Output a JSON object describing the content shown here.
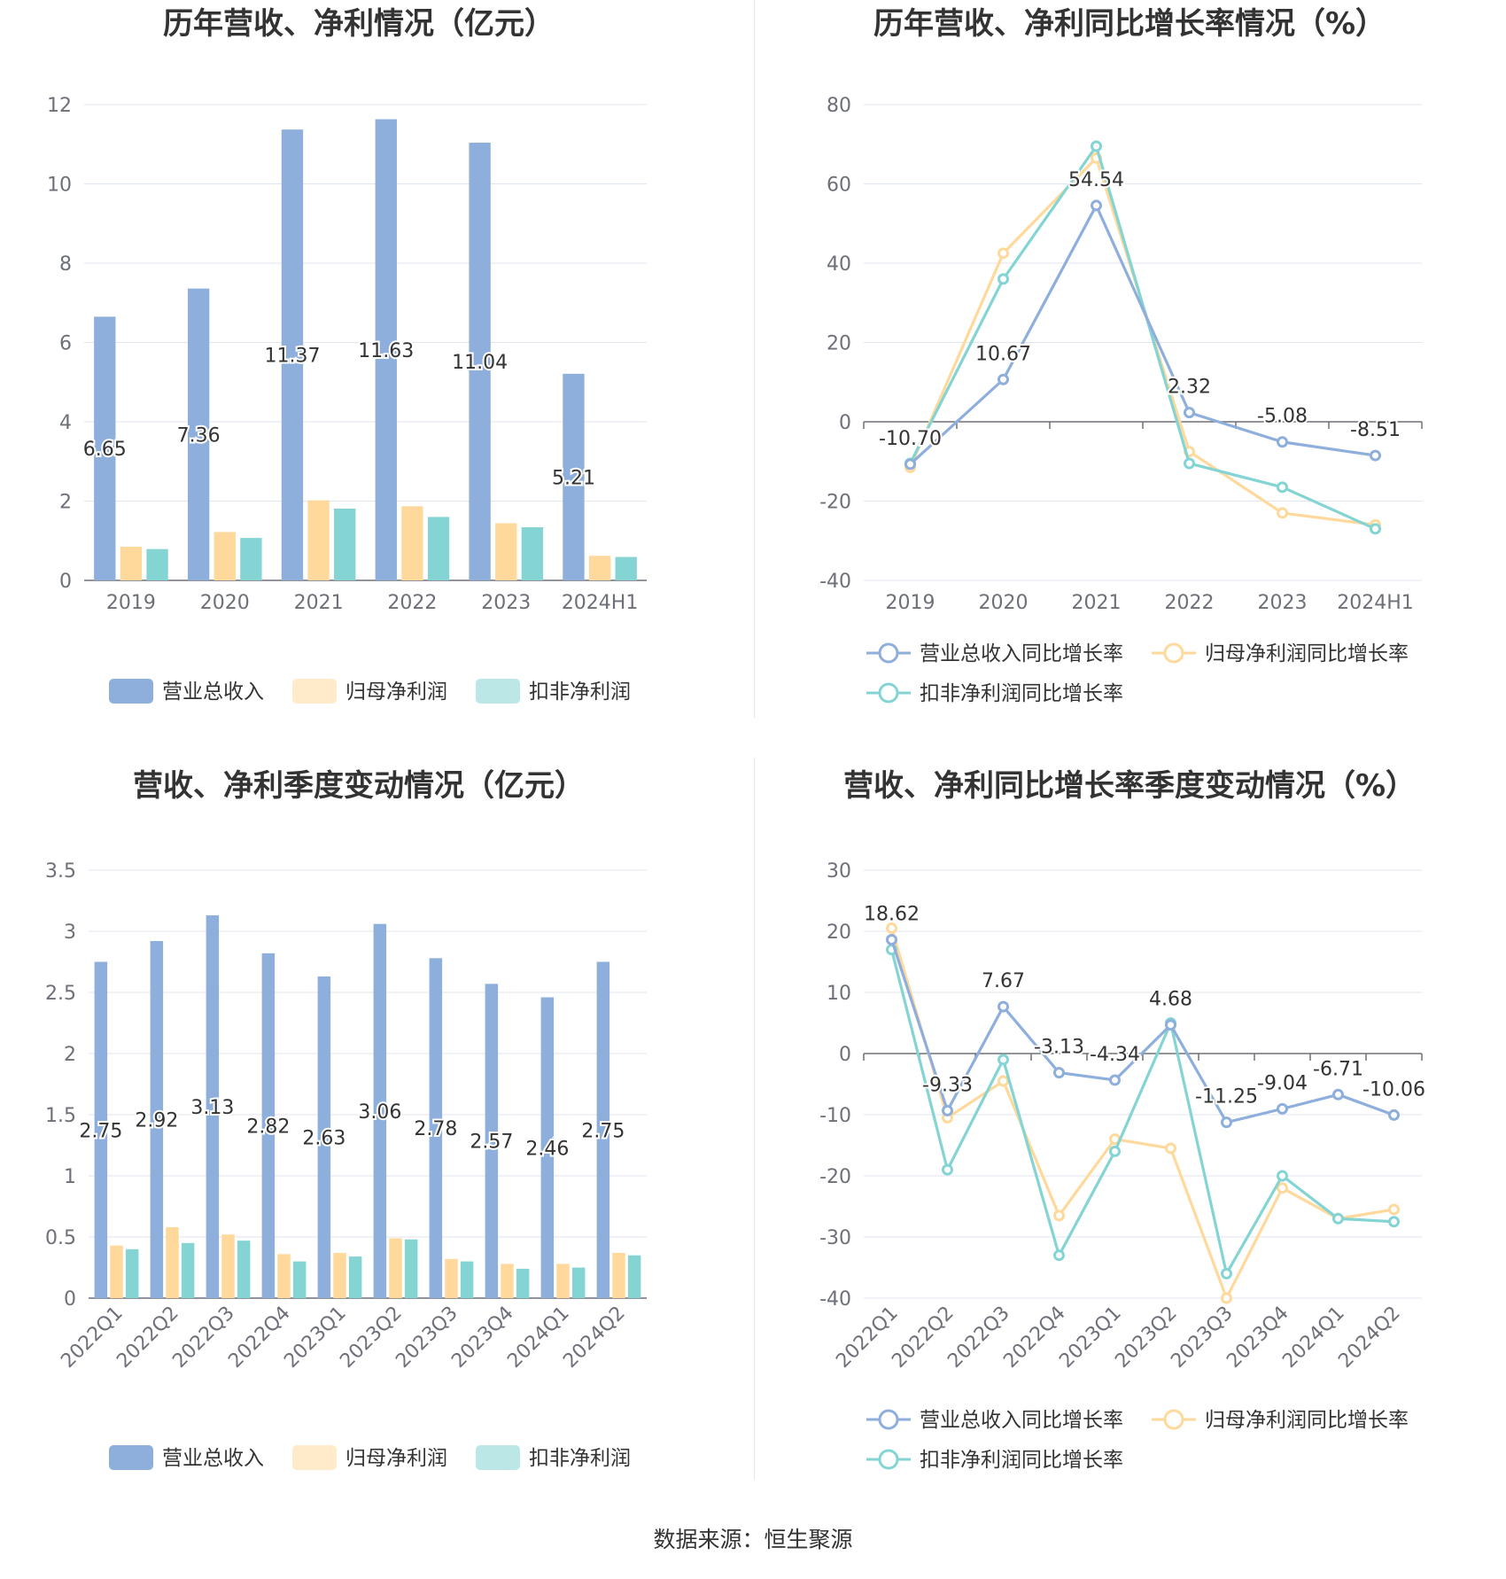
{
  "source_label": "数据来源：恒生聚源",
  "chart_data": [
    {
      "type": "bar",
      "title": "历年营收、净利情况（亿元）",
      "categories": [
        "2019",
        "2020",
        "2021",
        "2022",
        "2023",
        "2024H1"
      ],
      "ylim": [
        0,
        12
      ],
      "yticks": [
        0,
        2,
        4,
        6,
        8,
        10,
        12
      ],
      "grid": true,
      "legend_position": "bottom",
      "labeled_series": 0,
      "series": [
        {
          "name": "营业总收入",
          "color": "#8eaedc",
          "values": [
            6.65,
            7.36,
            11.37,
            11.63,
            11.04,
            5.21
          ]
        },
        {
          "name": "归母净利润",
          "color": "#ffd99c",
          "values": [
            0.85,
            1.22,
            2.02,
            1.87,
            1.44,
            0.62
          ]
        },
        {
          "name": "扣非净利润",
          "color": "#84d4d4",
          "values": [
            0.79,
            1.07,
            1.81,
            1.6,
            1.34,
            0.59
          ]
        }
      ],
      "data_labels": [
        "6.65",
        "7.36",
        "11.37",
        "11.63",
        "11.04",
        "5.21"
      ]
    },
    {
      "type": "line",
      "title": "历年营收、净利同比增长率情况（%）",
      "categories": [
        "2019",
        "2020",
        "2021",
        "2022",
        "2023",
        "2024H1"
      ],
      "ylim": [
        -40,
        80
      ],
      "yticks": [
        -40,
        -20,
        0,
        20,
        40,
        60,
        80
      ],
      "grid": true,
      "legend_position": "bottom",
      "labeled_series": 0,
      "series": [
        {
          "name": "营业总收入同比增长率",
          "color": "#8eaedc",
          "values": [
            -10.7,
            10.67,
            54.54,
            2.32,
            -5.08,
            -8.51
          ]
        },
        {
          "name": "归母净利润同比增长率",
          "color": "#ffd99c",
          "values": [
            -11.5,
            42.5,
            66.5,
            -7.5,
            -23.0,
            -26.0
          ]
        },
        {
          "name": "扣非净利润同比增长率",
          "color": "#84d4d4",
          "values": [
            -10.5,
            36.0,
            69.5,
            -10.5,
            -16.5,
            -27.0
          ]
        }
      ],
      "data_labels": [
        "-10.70",
        "10.67",
        "54.54",
        "2.32",
        "-5.08",
        "-8.51"
      ]
    },
    {
      "type": "bar",
      "title": "营收、净利季度变动情况（亿元）",
      "categories": [
        "2022Q1",
        "2022Q2",
        "2022Q3",
        "2022Q4",
        "2023Q1",
        "2023Q2",
        "2023Q3",
        "2023Q4",
        "2024Q1",
        "2024Q2"
      ],
      "ylim": [
        0,
        3.5
      ],
      "yticks": [
        0,
        0.5,
        1,
        1.5,
        2,
        2.5,
        3,
        3.5
      ],
      "grid": true,
      "legend_position": "bottom",
      "labeled_series": 0,
      "series": [
        {
          "name": "营业总收入",
          "color": "#8eaedc",
          "values": [
            2.75,
            2.92,
            3.13,
            2.82,
            2.63,
            3.06,
            2.78,
            2.57,
            2.46,
            2.75
          ]
        },
        {
          "name": "归母净利润",
          "color": "#ffd99c",
          "values": [
            0.43,
            0.58,
            0.52,
            0.36,
            0.37,
            0.49,
            0.32,
            0.28,
            0.28,
            0.37
          ]
        },
        {
          "name": "扣非净利润",
          "color": "#84d4d4",
          "values": [
            0.4,
            0.45,
            0.47,
            0.3,
            0.34,
            0.48,
            0.3,
            0.24,
            0.25,
            0.35
          ]
        }
      ],
      "data_labels": [
        "2.75",
        "2.92",
        "3.13",
        "2.82",
        "2.63",
        "3.06",
        "2.78",
        "2.57",
        "2.46",
        "2.75"
      ]
    },
    {
      "type": "line",
      "title": "营收、净利同比增长率季度变动情况（%）",
      "categories": [
        "2022Q1",
        "2022Q2",
        "2022Q3",
        "2022Q4",
        "2023Q1",
        "2023Q2",
        "2023Q3",
        "2023Q4",
        "2024Q1",
        "2024Q2"
      ],
      "ylim": [
        -40,
        30
      ],
      "yticks": [
        -40,
        -30,
        -20,
        -10,
        0,
        10,
        20,
        30
      ],
      "grid": true,
      "legend_position": "bottom",
      "labeled_series": 0,
      "series": [
        {
          "name": "营业总收入同比增长率",
          "color": "#8eaedc",
          "values": [
            18.62,
            -9.33,
            7.67,
            -3.13,
            -4.34,
            4.68,
            -11.25,
            -9.04,
            -6.71,
            -10.06
          ]
        },
        {
          "name": "归母净利润同比增长率",
          "color": "#ffd99c",
          "values": [
            20.5,
            -10.5,
            -4.5,
            -26.5,
            -14.0,
            -15.5,
            -40.0,
            -22.0,
            -27.0,
            -25.5
          ]
        },
        {
          "name": "扣非净利润同比增长率",
          "color": "#84d4d4",
          "values": [
            17.0,
            -19.0,
            -1.0,
            -33.0,
            -16.0,
            5.0,
            -36.0,
            -20.0,
            -27.0,
            -27.5
          ]
        }
      ],
      "data_labels": [
        "18.62",
        "-9.33",
        "7.67",
        "-3.13",
        "-4.34",
        "4.68",
        "-11.25",
        "-9.04",
        "-6.71",
        "-10.06"
      ]
    }
  ]
}
